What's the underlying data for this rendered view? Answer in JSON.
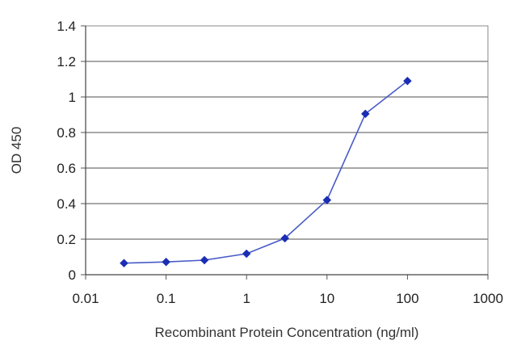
{
  "chart_data": {
    "type": "line",
    "title": "",
    "xlabel": "Recombinant Protein Concentration (ng/ml)",
    "ylabel": "OD 450",
    "x_scale": "log",
    "xlim": [
      0.01,
      1000
    ],
    "ylim": [
      0,
      1.4
    ],
    "x_ticks": [
      0.01,
      0.1,
      1,
      10,
      100,
      1000
    ],
    "x_tick_labels": [
      "0.01",
      "0.1",
      "1",
      "10",
      "100",
      "1000"
    ],
    "y_ticks": [
      0,
      0.2,
      0.4,
      0.6,
      0.8,
      1,
      1.2,
      1.4
    ],
    "y_tick_labels": [
      "0",
      "0.2",
      "0.4",
      "0.6",
      "0.8",
      "1",
      "1.2",
      "1.4"
    ],
    "grid": "horizontal",
    "legend": "none",
    "series": [
      {
        "color": "#1a2db4",
        "marker": "diamond",
        "x": [
          0.03,
          0.1,
          0.3,
          1,
          3,
          10,
          30,
          100
        ],
        "y": [
          0.065,
          0.072,
          0.082,
          0.118,
          0.205,
          0.42,
          0.905,
          1.09
        ]
      }
    ]
  }
}
